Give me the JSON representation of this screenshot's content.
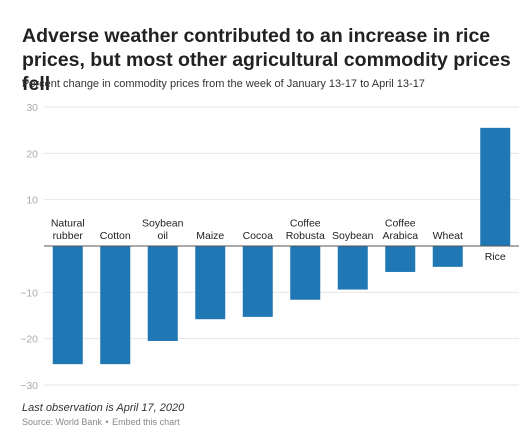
{
  "title": "Adverse weather contributed to an increase in rice prices, but most other agricultural commodity prices fell",
  "subtitle": "Percent change in commodity prices from the week of January 13-17 to April 13-17",
  "note": "Last observation is April 17, 2020",
  "source": {
    "text": "Source: World Bank",
    "separator": "•",
    "embed_label": "Embed this chart"
  },
  "colors": {
    "bar": "#1f77b4",
    "grid": "#e6e6e6",
    "axis": "#555555",
    "tick_text": "#aaaaaa",
    "label_text": "#222222"
  },
  "chart_data": {
    "type": "bar",
    "categories": [
      [
        "Natural",
        "rubber"
      ],
      [
        "Cotton"
      ],
      [
        "Soybean",
        "oil"
      ],
      [
        "Maize"
      ],
      [
        "Cocoa"
      ],
      [
        "Coffee",
        "Robusta"
      ],
      [
        "Soybean"
      ],
      [
        "Coffee",
        "Arabica"
      ],
      [
        "Wheat"
      ],
      [
        "Rice"
      ]
    ],
    "values": [
      -25.5,
      -25.5,
      -20.5,
      -15.8,
      -15.3,
      -11.6,
      -9.4,
      -5.6,
      -4.5,
      25.5
    ],
    "ylim": [
      -30,
      30
    ],
    "yticks": [
      -30,
      -20,
      -10,
      0,
      10,
      20,
      30
    ],
    "ytick_labels": [
      "−30",
      "−20",
      "−10",
      "",
      "10",
      "20",
      "30"
    ],
    "grid": true,
    "xlabel": "",
    "ylabel": ""
  }
}
